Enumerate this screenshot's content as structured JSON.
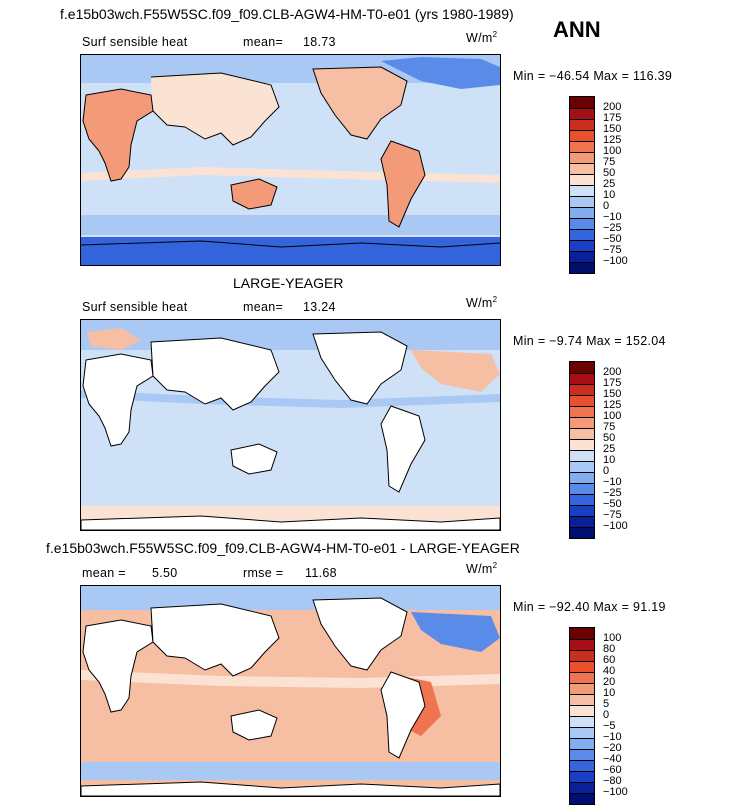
{
  "header": {
    "title": "f.e15b03wch.F55W5SC.f09_f09.CLB-AGW4-HM-T0-e01 (yrs 1980-1989)",
    "season": "ANN"
  },
  "chart_data": [
    {
      "type": "heatmap",
      "title": "f.e15b03wch.F55W5SC.f09_f09.CLB-AGW4-HM-T0-e01 (yrs 1980-1989)",
      "variable": "Surf sensible heat",
      "mean_label": "mean=",
      "mean": "18.73",
      "units": "W/m",
      "units_sup": "2",
      "min_max": "Min = −46.54  Max = 116.39",
      "colorbar": {
        "levels": [
          "200",
          "175",
          "150",
          "125",
          "100",
          "75",
          "50",
          "25",
          "10",
          "0",
          "−10",
          "−25",
          "−50",
          "−75",
          "−100"
        ],
        "colors": [
          "#6b0000",
          "#a50f15",
          "#cb2e1e",
          "#e8502e",
          "#f0744f",
          "#f39a78",
          "#f6bea2",
          "#fbe3d4",
          "#cfe1f7",
          "#a9c9f4",
          "#82aef0",
          "#5b8be8",
          "#3565dc",
          "#1b3fc4",
          "#0a1f9a",
          "#000f6e"
        ]
      }
    },
    {
      "type": "heatmap",
      "title": "LARGE-YEAGER",
      "variable": "Surf sensible heat",
      "mean_label": "mean=",
      "mean": "13.24",
      "units": "W/m",
      "units_sup": "2",
      "min_max": "Min =  −9.74  Max = 152.04",
      "colorbar": {
        "levels": [
          "200",
          "175",
          "150",
          "125",
          "100",
          "75",
          "50",
          "25",
          "10",
          "0",
          "−10",
          "−25",
          "−50",
          "−75",
          "−100"
        ],
        "colors": [
          "#6b0000",
          "#a50f15",
          "#cb2e1e",
          "#e8502e",
          "#f0744f",
          "#f39a78",
          "#f6bea2",
          "#fbe3d4",
          "#cfe1f7",
          "#a9c9f4",
          "#82aef0",
          "#5b8be8",
          "#3565dc",
          "#1b3fc4",
          "#0a1f9a",
          "#000f6e"
        ]
      }
    },
    {
      "type": "heatmap",
      "title": "f.e15b03wch.F55W5SC.f09_f09.CLB-AGW4-HM-T0-e01 - LARGE-YEAGER",
      "mean_label": "mean =",
      "mean": "5.50",
      "rmse_label": "rmse =",
      "rmse": "11.68",
      "units": "W/m",
      "units_sup": "2",
      "min_max": "Min = −92.40  Max =  91.19",
      "colorbar": {
        "levels": [
          "100",
          "80",
          "60",
          "40",
          "20",
          "10",
          "5",
          "0",
          "−5",
          "−10",
          "−20",
          "−40",
          "−60",
          "−80",
          "−100"
        ],
        "colors": [
          "#6b0000",
          "#a50f15",
          "#cb2e1e",
          "#e8502e",
          "#f0744f",
          "#f39a78",
          "#f6bea2",
          "#fbe3d4",
          "#cfe1f7",
          "#a9c9f4",
          "#82aef0",
          "#5b8be8",
          "#3565dc",
          "#1b3fc4",
          "#0a1f9a",
          "#000f6e"
        ]
      }
    }
  ]
}
